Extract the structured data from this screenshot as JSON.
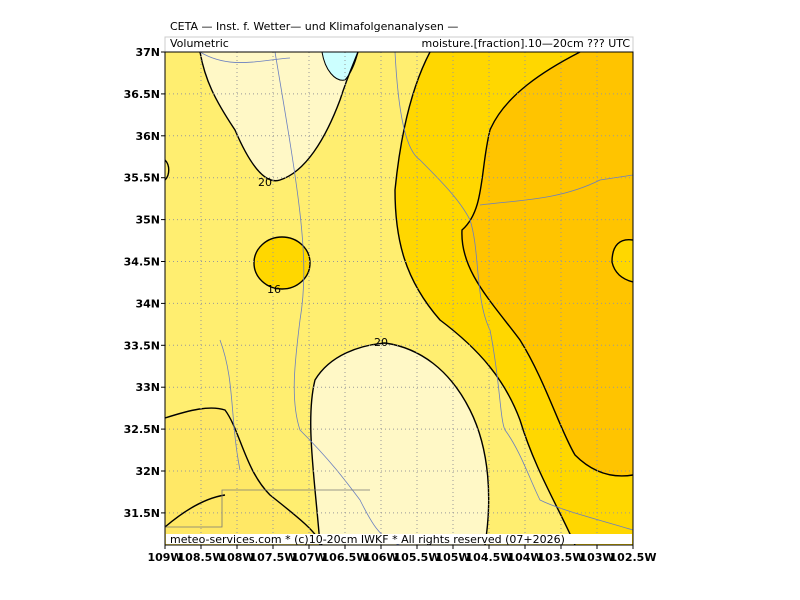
{
  "header": {
    "title": "CETA — Inst. f. Wetter— und Klimafolgenanalysen —",
    "left": "Volumetric",
    "right": "moisture.[fraction].10—20cm ??? UTC"
  },
  "lon_labels": [
    "109W",
    "108.5W",
    "108W",
    "107.5W",
    "107W",
    "106.5W",
    "106W",
    "105.5W",
    "105W",
    "104.5W",
    "104W",
    "103.5W",
    "103W",
    "102.5W"
  ],
  "lat_labels": [
    "37N",
    "36.5N",
    "36N",
    "35.5N",
    "35N",
    "34.5N",
    "34N",
    "33.5N",
    "33N",
    "32.5N",
    "32N",
    "31.5N"
  ],
  "contour_labels": [
    "20",
    "16",
    "20"
  ],
  "footer": "meteo-services.com * (c)10-20cm IWKF * All rights reserved (07+2026)"
}
